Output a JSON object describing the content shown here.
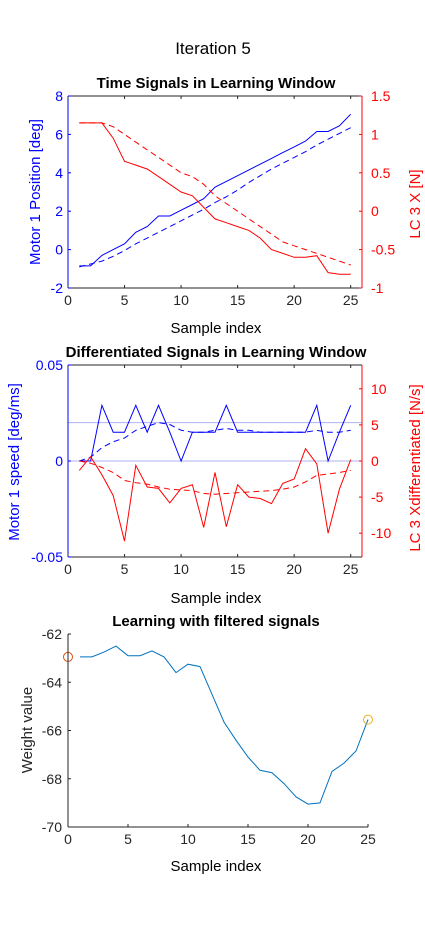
{
  "figure": {
    "suptitle": "Iteration 5"
  },
  "colors": {
    "blue": "#0000ff",
    "red": "#ff0000",
    "matlab_blue": "#0072bd",
    "matlab_orange_red": "#d95319",
    "matlab_yellow": "#edb120",
    "ref_line": "#b0b0f0"
  },
  "chart_data": [
    {
      "type": "line",
      "title": "Time Signals in Learning Window",
      "xlabel": "Sample index",
      "ylabel_left": "Motor 1 Position [deg]",
      "ylabel_right": "LC 3 X [N]",
      "xlim": [
        0,
        26
      ],
      "ylim_left": [
        -2,
        8
      ],
      "ylim_right": [
        -1,
        1.5
      ],
      "xticks": [
        "0",
        "5",
        "10",
        "15",
        "20",
        "25"
      ],
      "yticks_left": [
        "-2",
        "0",
        "2",
        "4",
        "6",
        "8"
      ],
      "yticks_right": [
        "-1",
        "-0.5",
        "0",
        "0.5",
        "1",
        "1.5"
      ],
      "series": [
        {
          "axis": "left",
          "style": "solid",
          "color": "blue",
          "x": [
            1,
            2,
            3,
            4,
            5,
            6,
            7,
            8,
            9,
            10,
            11,
            12,
            13,
            14,
            15,
            16,
            17,
            18,
            19,
            20,
            21,
            22,
            23,
            24,
            25
          ],
          "y": [
            -0.85,
            -0.85,
            -0.3,
            0,
            0.3,
            0.9,
            1.2,
            1.75,
            1.75,
            2.05,
            2.35,
            2.65,
            3.25,
            3.55,
            3.85,
            4.15,
            4.45,
            4.75,
            5.05,
            5.35,
            5.65,
            6.15,
            6.15,
            6.45,
            7.05
          ]
        },
        {
          "axis": "left",
          "style": "dashed",
          "color": "blue",
          "x": [
            1,
            2,
            3,
            4,
            5,
            6,
            7,
            8,
            9,
            10,
            11,
            12,
            13,
            14,
            15,
            16,
            17,
            18,
            19,
            20,
            21,
            22,
            23,
            24,
            25
          ],
          "y": [
            -0.9,
            -0.75,
            -0.6,
            -0.35,
            -0.05,
            0.3,
            0.6,
            0.9,
            1.2,
            1.5,
            1.8,
            2.1,
            2.45,
            2.75,
            3.1,
            3.5,
            3.85,
            4.2,
            4.5,
            4.8,
            5.1,
            5.45,
            5.75,
            6.05,
            6.35
          ]
        },
        {
          "axis": "right",
          "style": "solid",
          "color": "red",
          "x": [
            1,
            2,
            3,
            4,
            5,
            6,
            7,
            8,
            9,
            10,
            11,
            12,
            13,
            14,
            15,
            16,
            17,
            18,
            19,
            20,
            21,
            22,
            23,
            24,
            25
          ],
          "y": [
            1.15,
            1.15,
            1.15,
            0.95,
            0.65,
            0.6,
            0.55,
            0.45,
            0.35,
            0.25,
            0.2,
            0.05,
            -0.1,
            -0.15,
            -0.2,
            -0.25,
            -0.35,
            -0.5,
            -0.55,
            -0.6,
            -0.6,
            -0.58,
            -0.8,
            -0.82,
            -0.82
          ]
        },
        {
          "axis": "right",
          "style": "dashed",
          "color": "red",
          "x": [
            1,
            2,
            3,
            4,
            5,
            6,
            7,
            8,
            9,
            10,
            11,
            12,
            13,
            14,
            15,
            16,
            17,
            18,
            19,
            20,
            21,
            22,
            23,
            24,
            25
          ],
          "y": [
            1.15,
            1.15,
            1.15,
            1.1,
            1.0,
            0.9,
            0.8,
            0.7,
            0.6,
            0.5,
            0.45,
            0.35,
            0.2,
            0.1,
            0.0,
            -0.1,
            -0.2,
            -0.3,
            -0.4,
            -0.45,
            -0.5,
            -0.55,
            -0.6,
            -0.65,
            -0.7
          ]
        }
      ]
    },
    {
      "type": "line",
      "title": "Differentiated Signals in Learning Window",
      "xlabel": "Sample index",
      "ylabel_left": "Motor 1 speed [deg/ms]",
      "ylabel_right": "LC 3 Xdifferentiated [N/s]",
      "xlim": [
        0,
        26
      ],
      "ylim_left": [
        -0.05,
        0.05
      ],
      "ylim_right": [
        -13.3,
        13.3
      ],
      "xticks": [
        "0",
        "5",
        "10",
        "15",
        "20",
        "25"
      ],
      "yticks_left": [
        "-0.05",
        "0",
        "0.05"
      ],
      "yticks_left_values": [
        -0.05,
        0,
        0.05
      ],
      "yticks_right": [
        "-10",
        "-5",
        "0",
        "5",
        "10"
      ],
      "yticks_right_values": [
        -10,
        -5,
        0,
        5,
        10
      ],
      "reference_lines_left": [
        0.02,
        0
      ],
      "series": [
        {
          "axis": "left",
          "style": "solid",
          "color": "blue",
          "x": [
            1,
            2,
            3,
            4,
            5,
            6,
            7,
            8,
            9,
            10,
            11,
            12,
            13,
            14,
            15,
            16,
            17,
            18,
            19,
            20,
            21,
            22,
            23,
            24,
            25
          ],
          "y": [
            0,
            0,
            0.029,
            0.015,
            0.015,
            0.029,
            0.015,
            0.029,
            0.015,
            0,
            0.015,
            0.015,
            0.015,
            0.029,
            0.015,
            0.015,
            0.015,
            0.015,
            0.015,
            0.015,
            0.015,
            0.029,
            0,
            0.015,
            0.029
          ]
        },
        {
          "axis": "left",
          "style": "dashed",
          "color": "blue",
          "x": [
            1,
            2,
            3,
            4,
            5,
            6,
            7,
            8,
            9,
            10,
            11,
            12,
            13,
            14,
            15,
            16,
            17,
            18,
            19,
            20,
            21,
            22,
            23,
            24,
            25
          ],
          "y": [
            0,
            0.002,
            0.007,
            0.01,
            0.012,
            0.016,
            0.018,
            0.02,
            0.019,
            0.016,
            0.015,
            0.015,
            0.016,
            0.017,
            0.016,
            0.016,
            0.015,
            0.015,
            0.015,
            0.015,
            0.015,
            0.016,
            0.015,
            0.015,
            0.016
          ]
        },
        {
          "axis": "right",
          "style": "solid",
          "color": "red",
          "x": [
            1,
            2,
            3,
            4,
            5,
            6,
            7,
            8,
            9,
            10,
            11,
            12,
            13,
            14,
            15,
            16,
            17,
            18,
            19,
            20,
            21,
            22,
            23,
            24,
            25
          ],
          "y": [
            -1.3,
            0.6,
            -1.9,
            -4.8,
            -11.1,
            -0.6,
            -3.6,
            -3.8,
            -5.8,
            -3.8,
            -3.3,
            -9.2,
            -1.6,
            -9.1,
            -3.3,
            -5.0,
            -5.2,
            -5.9,
            -3.1,
            -2.5,
            1.7,
            -0.4,
            -10.0,
            -3.9,
            0.2
          ]
        },
        {
          "axis": "right",
          "style": "dashed",
          "color": "red",
          "x": [
            1,
            2,
            3,
            4,
            5,
            6,
            7,
            8,
            9,
            10,
            11,
            12,
            13,
            14,
            15,
            16,
            17,
            18,
            19,
            20,
            21,
            22,
            23,
            24,
            25
          ],
          "y": [
            0,
            -0.3,
            -0.9,
            -1.6,
            -2.7,
            -3.0,
            -3.2,
            -3.6,
            -3.9,
            -4.0,
            -4.1,
            -4.5,
            -4.6,
            -4.5,
            -4.4,
            -4.3,
            -4.2,
            -4.1,
            -3.9,
            -3.6,
            -2.9,
            -2.0,
            -1.8,
            -1.6,
            -1.3
          ]
        }
      ]
    },
    {
      "type": "line",
      "title": "Learning with filtered signals",
      "xlabel": "Sample index",
      "ylabel": "Weight value",
      "xlim": [
        0,
        25
      ],
      "ylim": [
        -70,
        -62
      ],
      "xticks": [
        "0",
        "5",
        "10",
        "15",
        "20",
        "25"
      ],
      "yticks": [
        "-70",
        "-68",
        "-66",
        "-64",
        "-62"
      ],
      "series": [
        {
          "style": "solid",
          "color": "matlab_blue",
          "x": [
            1,
            2,
            3,
            4,
            5,
            6,
            7,
            8,
            9,
            10,
            11,
            12,
            13,
            14,
            15,
            16,
            17,
            18,
            19,
            20,
            21,
            22,
            23,
            24,
            25
          ],
          "y": [
            -62.95,
            -62.95,
            -62.75,
            -62.5,
            -62.9,
            -62.9,
            -62.7,
            -62.95,
            -63.6,
            -63.25,
            -63.35,
            -64.5,
            -65.65,
            -66.4,
            -67.1,
            -67.65,
            -67.75,
            -68.2,
            -68.75,
            -69.05,
            -69.0,
            -67.7,
            -67.35,
            -66.85,
            -65.55
          ]
        }
      ],
      "markers": [
        {
          "x": 0,
          "y": -62.95,
          "color": "matlab_orange_red",
          "shape": "circle"
        },
        {
          "x": 25,
          "y": -65.55,
          "color": "matlab_yellow",
          "shape": "circle"
        }
      ]
    }
  ]
}
